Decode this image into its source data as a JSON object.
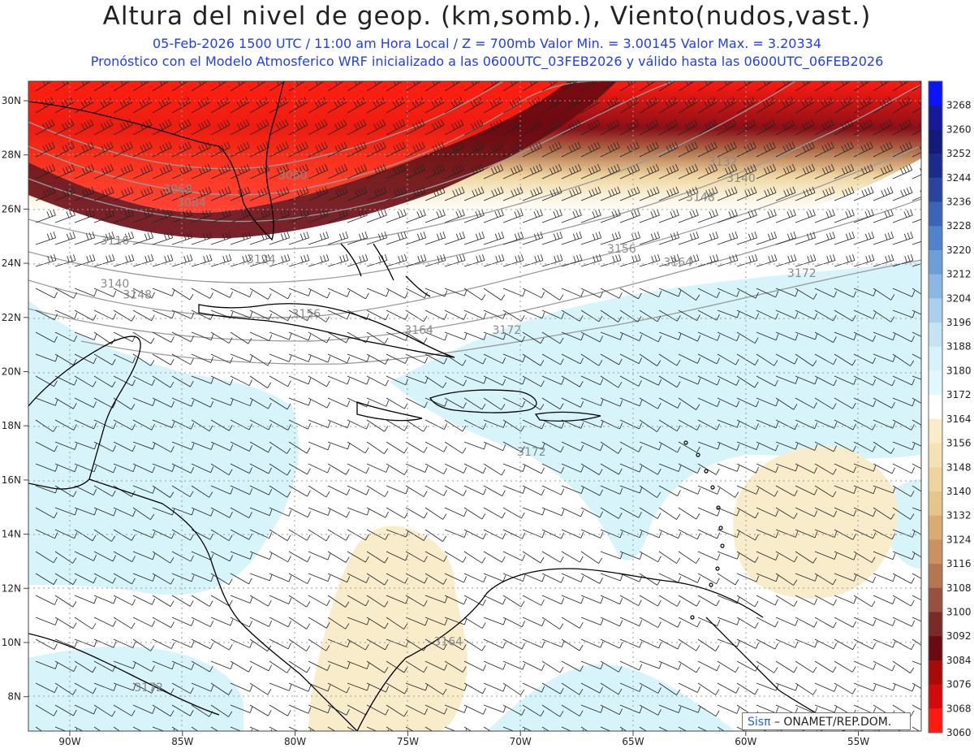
{
  "header": {
    "title": "Altura del nivel de geop. (km,somb.), Viento(nudos,vast.)",
    "subtitle_line1": "05-Feb-2026  1500 UTC / 11:00 am Hora Local / Z = 700mb   Valor Min. = 3.00145  Valor Max. = 3.20334",
    "subtitle_line2": "Pronóstico con el Modelo Atmosferico WRF inicializado a las 0600UTC_03FEB2026 y válido hasta las  0600UTC_06FEB2026"
  },
  "map": {
    "lat_labels": [
      "30N",
      "28N",
      "26N",
      "24N",
      "22N",
      "20N",
      "18N",
      "16N",
      "14N",
      "12N",
      "10N",
      "8N"
    ],
    "lon_labels": [
      "90W",
      "85W",
      "80W",
      "75W",
      "70W",
      "65W",
      "60W",
      "55W"
    ],
    "contour_labels": [
      {
        "text": "3060",
        "lon": -80.1,
        "lat": 27.1
      },
      {
        "text": "3068",
        "lon": -85.2,
        "lat": 26.6
      },
      {
        "text": "3084",
        "lon": -84.6,
        "lat": 26.1
      },
      {
        "text": "3116",
        "lon": -88.0,
        "lat": 24.7
      },
      {
        "text": "3124",
        "lon": -81.5,
        "lat": 24.0
      },
      {
        "text": "3140",
        "lon": -88.0,
        "lat": 23.1
      },
      {
        "text": "3148",
        "lon": -87.0,
        "lat": 22.7
      },
      {
        "text": "3156",
        "lon": -79.5,
        "lat": 22.0
      },
      {
        "text": "3164",
        "lon": -74.5,
        "lat": 21.4
      },
      {
        "text": "3172",
        "lon": -70.6,
        "lat": 21.4
      },
      {
        "text": "3132",
        "lon": -61.0,
        "lat": 27.6
      },
      {
        "text": "3140",
        "lon": -60.2,
        "lat": 27.0
      },
      {
        "text": "3148",
        "lon": -62.0,
        "lat": 26.3
      },
      {
        "text": "3156",
        "lon": -65.5,
        "lat": 24.4
      },
      {
        "text": "3164",
        "lon": -63.0,
        "lat": 23.9
      },
      {
        "text": "3172",
        "lon": -57.5,
        "lat": 23.5
      },
      {
        "text": "3172",
        "lon": -69.5,
        "lat": 16.9
      },
      {
        "text": "3164",
        "lon": -73.2,
        "lat": 9.9
      },
      {
        "text": "3172",
        "lon": -86.5,
        "lat": 8.2
      }
    ]
  },
  "colorbar": {
    "levels": [
      "3268",
      "3260",
      "3252",
      "3244",
      "3236",
      "3228",
      "3220",
      "3212",
      "3204",
      "3196",
      "3188",
      "3180",
      "3172",
      "3164",
      "3156",
      "3148",
      "3140",
      "3132",
      "3124",
      "3116",
      "3108",
      "3100",
      "3092",
      "3084",
      "3076",
      "3068",
      "3060"
    ],
    "colors": [
      "#0a14ff",
      "#141a9a",
      "#141a78",
      "#1c2a8e",
      "#28449e",
      "#3c64b4",
      "#4f82c6",
      "#6aa0d6",
      "#8ab8e2",
      "#aad0ee",
      "#c4e4f4",
      "#d6f2fa",
      "#e2f8ff",
      "#ffffff",
      "#f8eccb",
      "#f4e2b6",
      "#eed5a0",
      "#e6c58a",
      "#d9ad72",
      "#c99260",
      "#b47650",
      "#985040",
      "#7a2a28",
      "#6a0a12",
      "#a80a0a",
      "#d40a0a",
      "#ff1a10"
    ]
  },
  "credit": {
    "brand": "Sisπ",
    "text": "– ONAMET/REP.DOM."
  },
  "colors": {
    "title": "#222222",
    "subtitle": "#1e3cff",
    "contour": "#9a9a9a",
    "coast": "#000000"
  }
}
